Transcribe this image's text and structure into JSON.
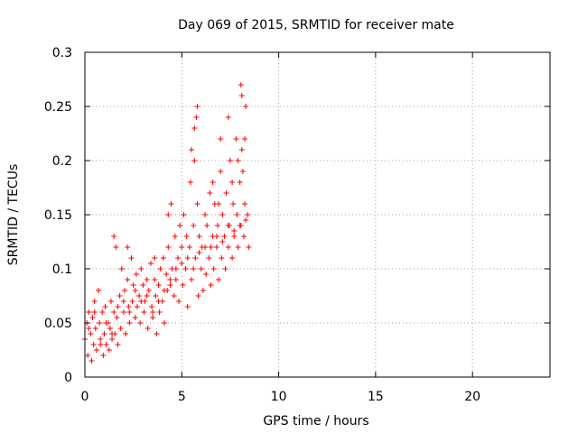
{
  "chart_data": {
    "type": "scatter",
    "title": "Day 069 of 2015, SRMTID for receiver mate",
    "xlabel": "GPS time / hours",
    "ylabel": "SRMTID / TECUs",
    "xlim": [
      0,
      24
    ],
    "ylim": [
      0,
      0.3
    ],
    "xticks": [
      0,
      5,
      10,
      15,
      20
    ],
    "xtick_labels": [
      "0",
      "5",
      "10",
      "15",
      "20"
    ],
    "yticks": [
      0,
      0.05,
      0.1,
      0.15,
      0.2,
      0.25,
      0.3
    ],
    "ytick_labels": [
      "0",
      "0.05",
      "0.1",
      "0.15",
      "0.2",
      "0.25",
      "0.3"
    ],
    "grid": true,
    "marker": "+",
    "series": [
      {
        "name": "SRMTID",
        "color": "#ff0000",
        "x": [
          0.0,
          0.1,
          0.15,
          0.2,
          0.3,
          0.35,
          0.4,
          0.45,
          0.5,
          0.55,
          0.6,
          0.7,
          0.75,
          0.8,
          0.9,
          0.95,
          1.0,
          1.05,
          1.1,
          1.2,
          1.25,
          1.3,
          1.35,
          1.4,
          1.5,
          1.55,
          1.6,
          1.65,
          1.7,
          1.8,
          1.85,
          1.9,
          2.0,
          2.05,
          2.1,
          2.2,
          2.25,
          2.3,
          2.4,
          2.45,
          2.5,
          2.6,
          2.65,
          2.7,
          2.8,
          2.85,
          2.9,
          3.0,
          3.05,
          3.1,
          3.2,
          3.25,
          3.3,
          3.4,
          3.45,
          3.5,
          3.6,
          3.65,
          3.7,
          3.8,
          3.85,
          3.9,
          4.0,
          4.05,
          4.1,
          4.2,
          4.25,
          4.3,
          4.4,
          4.45,
          4.5,
          4.6,
          4.65,
          4.7,
          4.8,
          4.85,
          4.9,
          5.0,
          5.05,
          5.1,
          5.2,
          5.25,
          5.3,
          5.4,
          5.45,
          5.5,
          5.6,
          5.65,
          5.7,
          5.8,
          5.85,
          5.9,
          6.0,
          6.05,
          6.1,
          6.2,
          6.25,
          6.3,
          6.4,
          6.45,
          6.5,
          6.6,
          6.65,
          6.7,
          6.8,
          6.85,
          6.9,
          7.0,
          7.05,
          7.1,
          7.2,
          7.25,
          7.3,
          7.4,
          7.45,
          7.5,
          7.6,
          7.65,
          7.7,
          7.8,
          7.85,
          7.9,
          8.0,
          8.05,
          8.1,
          8.2,
          8.25,
          8.3,
          8.4,
          8.45,
          0.2,
          0.5,
          0.8,
          1.1,
          1.4,
          1.7,
          2.0,
          2.3,
          2.6,
          2.9,
          3.2,
          3.5,
          3.8,
          4.1,
          4.4,
          4.7,
          5.0,
          5.3,
          5.6,
          5.9,
          6.2,
          6.5,
          6.8,
          7.1,
          7.4,
          7.7,
          8.0,
          8.3,
          5.5,
          5.8,
          6.6,
          7.0,
          7.4,
          7.9,
          8.05,
          8.15,
          8.25,
          5.65,
          5.75,
          6.9,
          7.6,
          8.1,
          1.5,
          2.2,
          3.6,
          4.3
        ],
        "y": [
          0.035,
          0.05,
          0.02,
          0.06,
          0.04,
          0.015,
          0.055,
          0.03,
          0.07,
          0.045,
          0.025,
          0.08,
          0.05,
          0.035,
          0.06,
          0.02,
          0.04,
          0.065,
          0.03,
          0.05,
          0.025,
          0.045,
          0.07,
          0.035,
          0.06,
          0.04,
          0.12,
          0.055,
          0.03,
          0.075,
          0.045,
          0.1,
          0.06,
          0.08,
          0.04,
          0.09,
          0.065,
          0.05,
          0.11,
          0.07,
          0.085,
          0.055,
          0.095,
          0.065,
          0.075,
          0.05,
          0.1,
          0.085,
          0.06,
          0.07,
          0.09,
          0.045,
          0.08,
          0.105,
          0.065,
          0.055,
          0.09,
          0.075,
          0.04,
          0.085,
          0.06,
          0.1,
          0.07,
          0.11,
          0.05,
          0.095,
          0.08,
          0.12,
          0.085,
          0.16,
          0.1,
          0.075,
          0.13,
          0.09,
          0.11,
          0.07,
          0.14,
          0.12,
          0.085,
          0.15,
          0.1,
          0.13,
          0.065,
          0.12,
          0.18,
          0.09,
          0.14,
          0.23,
          0.11,
          0.16,
          0.075,
          0.13,
          0.1,
          0.12,
          0.08,
          0.15,
          0.095,
          0.14,
          0.11,
          0.17,
          0.085,
          0.13,
          0.1,
          0.16,
          0.12,
          0.14,
          0.09,
          0.19,
          0.11,
          0.15,
          0.13,
          0.1,
          0.17,
          0.12,
          0.14,
          0.2,
          0.11,
          0.16,
          0.13,
          0.22,
          0.15,
          0.12,
          0.18,
          0.14,
          0.21,
          0.13,
          0.16,
          0.25,
          0.15,
          0.12,
          0.045,
          0.06,
          0.03,
          0.05,
          0.04,
          0.065,
          0.07,
          0.06,
          0.08,
          0.07,
          0.075,
          0.06,
          0.07,
          0.08,
          0.09,
          0.1,
          0.105,
          0.11,
          0.1,
          0.115,
          0.12,
          0.12,
          0.13,
          0.125,
          0.14,
          0.135,
          0.14,
          0.145,
          0.21,
          0.25,
          0.18,
          0.22,
          0.24,
          0.2,
          0.27,
          0.19,
          0.22,
          0.2,
          0.24,
          0.16,
          0.18,
          0.26,
          0.13,
          0.12,
          0.11,
          0.15
        ]
      }
    ]
  }
}
